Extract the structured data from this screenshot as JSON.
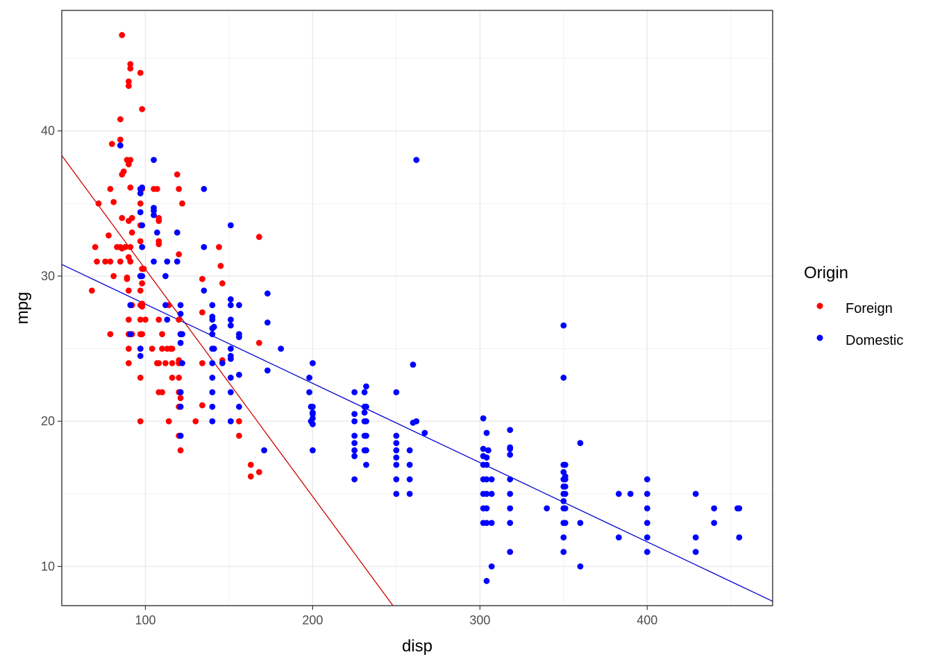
{
  "chart_data": {
    "type": "scatter",
    "xlabel": "disp",
    "ylabel": "mpg",
    "xlim": [
      50,
      475
    ],
    "ylim": [
      7.3,
      48.3
    ],
    "x_ticks": [
      100,
      200,
      300,
      400
    ],
    "y_ticks": [
      10,
      20,
      30,
      40
    ],
    "x_minor_ticks": [
      150,
      250,
      350,
      450
    ],
    "y_minor_ticks": [
      15,
      25,
      35,
      45
    ],
    "grid": true,
    "legend": {
      "title": "Origin",
      "position": "right",
      "entries": [
        "Foreign",
        "Domestic"
      ]
    },
    "colors": {
      "Foreign": "#ff0000",
      "Domestic": "#0000ff",
      "Foreign_line": "#cc0000",
      "Domestic_line": "#0000cc"
    },
    "series": [
      {
        "name": "Foreign",
        "points": [
          [
            68,
            29
          ],
          [
            70,
            32
          ],
          [
            71,
            31
          ],
          [
            72,
            35
          ],
          [
            76,
            31
          ],
          [
            78,
            32.8
          ],
          [
            79,
            31
          ],
          [
            79,
            26
          ],
          [
            79,
            36
          ],
          [
            80,
            39.1
          ],
          [
            81,
            30
          ],
          [
            81,
            35.1
          ],
          [
            83,
            32
          ],
          [
            85,
            32
          ],
          [
            85,
            31
          ],
          [
            85,
            39.4
          ],
          [
            85,
            40.8
          ],
          [
            86,
            34
          ],
          [
            86,
            37
          ],
          [
            86,
            46.6
          ],
          [
            86,
            31.9
          ],
          [
            87,
            37.2
          ],
          [
            88,
            32
          ],
          [
            89,
            38
          ],
          [
            89,
            29.9
          ],
          [
            89,
            29.8
          ],
          [
            90,
            24
          ],
          [
            90,
            25
          ],
          [
            90,
            26
          ],
          [
            90,
            27
          ],
          [
            90,
            29
          ],
          [
            90,
            31.3
          ],
          [
            90,
            33.8
          ],
          [
            90,
            37.7
          ],
          [
            90,
            43.1
          ],
          [
            90,
            43.4
          ],
          [
            91,
            31
          ],
          [
            91,
            32
          ],
          [
            91,
            36.1
          ],
          [
            91,
            38
          ],
          [
            91,
            44.3
          ],
          [
            91,
            44.6
          ],
          [
            92,
            33
          ],
          [
            92,
            34
          ],
          [
            92,
            28
          ],
          [
            92,
            26
          ],
          [
            97,
            25
          ],
          [
            97,
            26
          ],
          [
            97,
            27
          ],
          [
            97,
            28
          ],
          [
            97,
            29
          ],
          [
            97,
            30
          ],
          [
            97,
            32.4
          ],
          [
            97,
            33.5
          ],
          [
            97,
            35
          ],
          [
            97,
            23
          ],
          [
            97,
            20
          ],
          [
            97,
            44
          ],
          [
            98,
            29.5
          ],
          [
            98,
            36
          ],
          [
            98,
            41.5
          ],
          [
            98,
            30.5
          ],
          [
            98,
            28
          ],
          [
            98,
            26
          ],
          [
            98,
            27.9
          ],
          [
            98,
            28.1
          ],
          [
            99,
            30.5
          ],
          [
            100,
            27
          ],
          [
            104,
            25
          ],
          [
            105,
            36
          ],
          [
            107,
            24
          ],
          [
            107,
            36
          ],
          [
            108,
            22
          ],
          [
            108,
            24
          ],
          [
            108,
            32.2
          ],
          [
            108,
            33.8
          ],
          [
            108,
            34
          ],
          [
            108,
            32.4
          ],
          [
            108,
            27
          ],
          [
            110,
            22
          ],
          [
            110,
            26
          ],
          [
            110,
            25
          ],
          [
            112,
            24
          ],
          [
            113,
            25
          ],
          [
            114,
            28
          ],
          [
            114,
            20
          ],
          [
            115,
            25
          ],
          [
            116,
            25
          ],
          [
            116,
            24
          ],
          [
            116,
            23
          ],
          [
            119,
            37
          ],
          [
            119,
            33
          ],
          [
            120,
            19
          ],
          [
            120,
            21
          ],
          [
            120,
            22
          ],
          [
            120,
            23
          ],
          [
            120,
            24
          ],
          [
            120,
            24.2
          ],
          [
            120,
            27
          ],
          [
            120,
            31.5
          ],
          [
            120,
            36
          ],
          [
            121,
            21.6
          ],
          [
            121,
            21
          ],
          [
            121,
            22
          ],
          [
            121,
            19
          ],
          [
            121,
            18
          ],
          [
            121,
            26
          ],
          [
            122,
            35
          ],
          [
            130,
            20
          ],
          [
            134,
            29.8
          ],
          [
            134,
            21.1
          ],
          [
            134,
            24
          ],
          [
            134,
            27.5
          ],
          [
            144,
            32
          ],
          [
            145,
            30.7
          ],
          [
            146,
            24.2
          ],
          [
            146,
            29.5
          ],
          [
            156,
            19
          ],
          [
            156,
            20
          ],
          [
            163,
            17
          ],
          [
            163,
            16.2
          ],
          [
            168,
            16.5
          ],
          [
            168,
            32.7
          ],
          [
            168,
            25.4
          ]
        ]
      },
      {
        "name": "Domestic",
        "points": [
          [
            85,
            39
          ],
          [
            91,
            28
          ],
          [
            91,
            26
          ],
          [
            97,
            36
          ],
          [
            97,
            35.7
          ],
          [
            97,
            34.4
          ],
          [
            97,
            30
          ],
          [
            97,
            25
          ],
          [
            97,
            24.5
          ],
          [
            98,
            33.5
          ],
          [
            98,
            32
          ],
          [
            98,
            36.1
          ],
          [
            98,
            30
          ],
          [
            105,
            34.7
          ],
          [
            105,
            34.5
          ],
          [
            105,
            34.2
          ],
          [
            105,
            38
          ],
          [
            105,
            31
          ],
          [
            107,
            33
          ],
          [
            112,
            28
          ],
          [
            112,
            30
          ],
          [
            113,
            27
          ],
          [
            113,
            31
          ],
          [
            119,
            31
          ],
          [
            119,
            33
          ],
          [
            121,
            26
          ],
          [
            121,
            22
          ],
          [
            121,
            21
          ],
          [
            121,
            19
          ],
          [
            121,
            27.4
          ],
          [
            121,
            25.4
          ],
          [
            121,
            28
          ],
          [
            122,
            26
          ],
          [
            122,
            24
          ],
          [
            135,
            36
          ],
          [
            135,
            32
          ],
          [
            135,
            29
          ],
          [
            140,
            26
          ],
          [
            140,
            28
          ],
          [
            140,
            25
          ],
          [
            140,
            23
          ],
          [
            140,
            22
          ],
          [
            140,
            20
          ],
          [
            140,
            27
          ],
          [
            140,
            21
          ],
          [
            140,
            24
          ],
          [
            140,
            26.4
          ],
          [
            140,
            27.2
          ],
          [
            141,
            25
          ],
          [
            141,
            26.5
          ],
          [
            146,
            24
          ],
          [
            151,
            24.5
          ],
          [
            151,
            33.5
          ],
          [
            151,
            28
          ],
          [
            151,
            26.6
          ],
          [
            151,
            24.3
          ],
          [
            151,
            27
          ],
          [
            151,
            23
          ],
          [
            151,
            22
          ],
          [
            151,
            28.4
          ],
          [
            151,
            25
          ],
          [
            151,
            20
          ],
          [
            156,
            21
          ],
          [
            156,
            23.2
          ],
          [
            156,
            25.8
          ],
          [
            156,
            28
          ],
          [
            156,
            26
          ],
          [
            171,
            18
          ],
          [
            173,
            28.8
          ],
          [
            173,
            26.8
          ],
          [
            173,
            23.5
          ],
          [
            181,
            25
          ],
          [
            198,
            23
          ],
          [
            198,
            22
          ],
          [
            199,
            20
          ],
          [
            199,
            21
          ],
          [
            200,
            18
          ],
          [
            200,
            19.8
          ],
          [
            200,
            20.2
          ],
          [
            200,
            20.5
          ],
          [
            200,
            20.6
          ],
          [
            200,
            21
          ],
          [
            200,
            24
          ],
          [
            225,
            16
          ],
          [
            225,
            17.6
          ],
          [
            225,
            18
          ],
          [
            225,
            19
          ],
          [
            225,
            20
          ],
          [
            225,
            22
          ],
          [
            225,
            18.5
          ],
          [
            225,
            20.5
          ],
          [
            231,
            18
          ],
          [
            231,
            19
          ],
          [
            231,
            20
          ],
          [
            231,
            21
          ],
          [
            231,
            22
          ],
          [
            231,
            20.6
          ],
          [
            232,
            17
          ],
          [
            232,
            18
          ],
          [
            232,
            19
          ],
          [
            232,
            20
          ],
          [
            232,
            21
          ],
          [
            232,
            22.4
          ],
          [
            250,
            15
          ],
          [
            250,
            16
          ],
          [
            250,
            17
          ],
          [
            250,
            18
          ],
          [
            250,
            19
          ],
          [
            250,
            22
          ],
          [
            250,
            17.5
          ],
          [
            250,
            18.5
          ],
          [
            258,
            15
          ],
          [
            258,
            16
          ],
          [
            258,
            17
          ],
          [
            258,
            18
          ],
          [
            260,
            23.9
          ],
          [
            260,
            19.9
          ],
          [
            262,
            38
          ],
          [
            262,
            20
          ],
          [
            267,
            19.2
          ],
          [
            302,
            13
          ],
          [
            302,
            14
          ],
          [
            302,
            15
          ],
          [
            302,
            16
          ],
          [
            302,
            17
          ],
          [
            302,
            17.6
          ],
          [
            302,
            18.1
          ],
          [
            302,
            20.2
          ],
          [
            304,
            9
          ],
          [
            304,
            13
          ],
          [
            304,
            14
          ],
          [
            304,
            15
          ],
          [
            304,
            16
          ],
          [
            304,
            17
          ],
          [
            304,
            17.5
          ],
          [
            304,
            19.2
          ],
          [
            305,
            18
          ],
          [
            307,
            10
          ],
          [
            307,
            13
          ],
          [
            307,
            15
          ],
          [
            307,
            16
          ],
          [
            318,
            11
          ],
          [
            318,
            13
          ],
          [
            318,
            14
          ],
          [
            318,
            15
          ],
          [
            318,
            16
          ],
          [
            318,
            17.7
          ],
          [
            318,
            18.1
          ],
          [
            318,
            18.2
          ],
          [
            318,
            19.4
          ],
          [
            340,
            14
          ],
          [
            350,
            11
          ],
          [
            350,
            12
          ],
          [
            350,
            13
          ],
          [
            350,
            14
          ],
          [
            350,
            15
          ],
          [
            350,
            16
          ],
          [
            350,
            16.5
          ],
          [
            350,
            17
          ],
          [
            350,
            14.5
          ],
          [
            350,
            15.5
          ],
          [
            350,
            23
          ],
          [
            350,
            26.6
          ],
          [
            351,
            13
          ],
          [
            351,
            14
          ],
          [
            351,
            15
          ],
          [
            351,
            16
          ],
          [
            351,
            16.2
          ],
          [
            351,
            17
          ],
          [
            351,
            15.5
          ],
          [
            360,
            10
          ],
          [
            360,
            13
          ],
          [
            360,
            18.5
          ],
          [
            383,
            12
          ],
          [
            383,
            15
          ],
          [
            390,
            15
          ],
          [
            400,
            11
          ],
          [
            400,
            12
          ],
          [
            400,
            13
          ],
          [
            400,
            14
          ],
          [
            400,
            15
          ],
          [
            400,
            16
          ],
          [
            429,
            11
          ],
          [
            429,
            12
          ],
          [
            429,
            15
          ],
          [
            440,
            13
          ],
          [
            440,
            14
          ],
          [
            454,
            14
          ],
          [
            455,
            12
          ],
          [
            455,
            14
          ]
        ]
      }
    ],
    "fit_lines": [
      {
        "name": "Foreign",
        "x1": 50,
        "y1": 38.3,
        "x2": 248,
        "y2": 7.3
      },
      {
        "name": "Domestic",
        "x1": 50,
        "y1": 30.8,
        "x2": 475,
        "y2": 7.6
      }
    ]
  }
}
